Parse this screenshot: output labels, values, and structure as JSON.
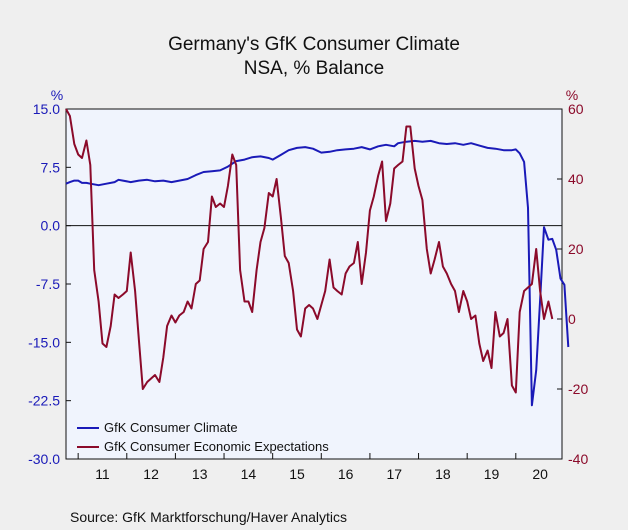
{
  "title": "Germany's GfK Consumer Climate",
  "subtitle": "NSA, % Balance",
  "source": "Source:  GfK Marktforschung/Haver Analytics",
  "colors": {
    "left": "#1a1ab8",
    "right": "#8b0a2a",
    "plot_bg": "#f0f4fd",
    "page_bg": "#efefef"
  },
  "chart_data": {
    "type": "line",
    "left_axis": {
      "unit": "%",
      "min": -30,
      "max": 15,
      "ticks": [
        "15.0",
        "7.5",
        "0.0",
        "-7.5",
        "-15.0",
        "-22.5",
        "-30.0"
      ]
    },
    "right_axis": {
      "unit": "%",
      "min": -40,
      "max": 60,
      "ticks": [
        "60",
        "40",
        "20",
        "0",
        "-20",
        "-40"
      ]
    },
    "x_axis": {
      "labels": [
        "11",
        "12",
        "13",
        "14",
        "15",
        "16",
        "17",
        "18",
        "19",
        "20"
      ],
      "start": 2010.75,
      "end": 2020.95
    },
    "reference_line": 0,
    "legend": "bottom-left",
    "series": [
      {
        "name": "GfK Consumer Climate",
        "axis": "left",
        "color": "#1a1ab8",
        "points": [
          [
            2010.75,
            5.4
          ],
          [
            2010.83,
            5.6
          ],
          [
            2010.92,
            5.8
          ],
          [
            2011.0,
            5.8
          ],
          [
            2011.08,
            5.5
          ],
          [
            2011.17,
            5.5
          ],
          [
            2011.25,
            5.4
          ],
          [
            2011.42,
            5.2
          ],
          [
            2011.58,
            5.4
          ],
          [
            2011.75,
            5.6
          ],
          [
            2011.83,
            5.9
          ],
          [
            2011.92,
            5.8
          ],
          [
            2012.08,
            5.6
          ],
          [
            2012.25,
            5.8
          ],
          [
            2012.42,
            5.9
          ],
          [
            2012.58,
            5.7
          ],
          [
            2012.75,
            5.8
          ],
          [
            2012.92,
            5.6
          ],
          [
            2013.08,
            5.8
          ],
          [
            2013.25,
            6.0
          ],
          [
            2013.42,
            6.5
          ],
          [
            2013.58,
            6.9
          ],
          [
            2013.75,
            7.0
          ],
          [
            2013.92,
            7.1
          ],
          [
            2014.08,
            7.6
          ],
          [
            2014.25,
            8.3
          ],
          [
            2014.42,
            8.5
          ],
          [
            2014.58,
            8.8
          ],
          [
            2014.75,
            8.9
          ],
          [
            2014.92,
            8.7
          ],
          [
            2015.0,
            8.5
          ],
          [
            2015.17,
            9.1
          ],
          [
            2015.33,
            9.7
          ],
          [
            2015.5,
            10.0
          ],
          [
            2015.67,
            10.1
          ],
          [
            2015.83,
            9.9
          ],
          [
            2016.0,
            9.4
          ],
          [
            2016.17,
            9.5
          ],
          [
            2016.33,
            9.7
          ],
          [
            2016.5,
            9.8
          ],
          [
            2016.67,
            9.9
          ],
          [
            2016.83,
            10.1
          ],
          [
            2017.0,
            9.8
          ],
          [
            2017.17,
            10.2
          ],
          [
            2017.33,
            10.4
          ],
          [
            2017.5,
            10.2
          ],
          [
            2017.58,
            10.6
          ],
          [
            2017.75,
            10.8
          ],
          [
            2017.92,
            10.9
          ],
          [
            2018.08,
            10.8
          ],
          [
            2018.25,
            10.9
          ],
          [
            2018.42,
            10.6
          ],
          [
            2018.58,
            10.5
          ],
          [
            2018.75,
            10.6
          ],
          [
            2018.92,
            10.4
          ],
          [
            2019.08,
            10.6
          ],
          [
            2019.25,
            10.3
          ],
          [
            2019.42,
            10.0
          ],
          [
            2019.58,
            9.9
          ],
          [
            2019.75,
            9.7
          ],
          [
            2019.92,
            9.7
          ],
          [
            2020.0,
            9.8
          ],
          [
            2020.08,
            9.3
          ],
          [
            2020.17,
            8.2
          ],
          [
            2020.25,
            2.3
          ],
          [
            2020.33,
            -23.1
          ],
          [
            2020.42,
            -18.6
          ],
          [
            2020.5,
            -9.6
          ],
          [
            2020.58,
            -0.2
          ],
          [
            2020.67,
            -1.8
          ],
          [
            2020.75,
            -1.7
          ],
          [
            2020.83,
            -3.1
          ],
          [
            2020.92,
            -6.8
          ],
          [
            2021.0,
            -7.6
          ],
          [
            2021.08,
            -15.6
          ]
        ]
      },
      {
        "name": "GfK Consumer Economic Expectations",
        "axis": "right",
        "color": "#8b0a2a",
        "points": [
          [
            2010.75,
            60
          ],
          [
            2010.83,
            58
          ],
          [
            2010.92,
            50
          ],
          [
            2011.0,
            47
          ],
          [
            2011.08,
            46
          ],
          [
            2011.17,
            51
          ],
          [
            2011.25,
            44
          ],
          [
            2011.33,
            14
          ],
          [
            2011.42,
            5
          ],
          [
            2011.5,
            -7
          ],
          [
            2011.58,
            -8
          ],
          [
            2011.67,
            -2
          ],
          [
            2011.75,
            7
          ],
          [
            2011.83,
            6
          ],
          [
            2011.92,
            7
          ],
          [
            2012.0,
            8
          ],
          [
            2012.08,
            19
          ],
          [
            2012.17,
            8
          ],
          [
            2012.25,
            -6
          ],
          [
            2012.33,
            -20
          ],
          [
            2012.42,
            -18
          ],
          [
            2012.5,
            -17
          ],
          [
            2012.58,
            -16
          ],
          [
            2012.67,
            -18
          ],
          [
            2012.75,
            -11
          ],
          [
            2012.83,
            -2
          ],
          [
            2012.92,
            1
          ],
          [
            2013.0,
            -1
          ],
          [
            2013.08,
            1
          ],
          [
            2013.17,
            2
          ],
          [
            2013.25,
            5
          ],
          [
            2013.33,
            3
          ],
          [
            2013.42,
            10
          ],
          [
            2013.5,
            11
          ],
          [
            2013.58,
            20
          ],
          [
            2013.67,
            22
          ],
          [
            2013.75,
            35
          ],
          [
            2013.83,
            32
          ],
          [
            2013.92,
            33
          ],
          [
            2014.0,
            32
          ],
          [
            2014.08,
            38
          ],
          [
            2014.17,
            47
          ],
          [
            2014.25,
            44
          ],
          [
            2014.33,
            14
          ],
          [
            2014.42,
            5
          ],
          [
            2014.5,
            5
          ],
          [
            2014.58,
            2
          ],
          [
            2014.67,
            14
          ],
          [
            2014.75,
            22
          ],
          [
            2014.83,
            26
          ],
          [
            2014.92,
            36
          ],
          [
            2015.0,
            35
          ],
          [
            2015.08,
            40
          ],
          [
            2015.17,
            29
          ],
          [
            2015.25,
            18
          ],
          [
            2015.33,
            16
          ],
          [
            2015.42,
            8
          ],
          [
            2015.5,
            -3
          ],
          [
            2015.58,
            -5
          ],
          [
            2015.67,
            3
          ],
          [
            2015.75,
            4
          ],
          [
            2015.83,
            3
          ],
          [
            2015.92,
            0
          ],
          [
            2016.0,
            4
          ],
          [
            2016.08,
            8
          ],
          [
            2016.17,
            17
          ],
          [
            2016.25,
            9
          ],
          [
            2016.33,
            8
          ],
          [
            2016.42,
            7
          ],
          [
            2016.5,
            13
          ],
          [
            2016.58,
            15
          ],
          [
            2016.67,
            16
          ],
          [
            2016.75,
            22
          ],
          [
            2016.83,
            10
          ],
          [
            2016.92,
            19
          ],
          [
            2017.0,
            31
          ],
          [
            2017.08,
            35
          ],
          [
            2017.17,
            41
          ],
          [
            2017.25,
            45
          ],
          [
            2017.33,
            28
          ],
          [
            2017.42,
            33
          ],
          [
            2017.5,
            43
          ],
          [
            2017.58,
            44
          ],
          [
            2017.67,
            45
          ],
          [
            2017.75,
            55
          ],
          [
            2017.83,
            55
          ],
          [
            2017.92,
            43
          ],
          [
            2018.0,
            38
          ],
          [
            2018.08,
            34
          ],
          [
            2018.17,
            20
          ],
          [
            2018.25,
            13
          ],
          [
            2018.33,
            17
          ],
          [
            2018.42,
            22
          ],
          [
            2018.5,
            15
          ],
          [
            2018.58,
            13
          ],
          [
            2018.67,
            10
          ],
          [
            2018.75,
            8
          ],
          [
            2018.83,
            2
          ],
          [
            2018.92,
            8
          ],
          [
            2019.0,
            5
          ],
          [
            2019.08,
            0
          ],
          [
            2019.17,
            1
          ],
          [
            2019.25,
            -7
          ],
          [
            2019.33,
            -12
          ],
          [
            2019.42,
            -9
          ],
          [
            2019.5,
            -14
          ],
          [
            2019.58,
            2
          ],
          [
            2019.67,
            -5
          ],
          [
            2019.75,
            -4
          ],
          [
            2019.83,
            0
          ],
          [
            2019.92,
            -19
          ],
          [
            2020.0,
            -21
          ],
          [
            2020.08,
            2
          ],
          [
            2020.17,
            8
          ],
          [
            2020.25,
            9
          ],
          [
            2020.33,
            10
          ],
          [
            2020.42,
            20
          ],
          [
            2020.5,
            8
          ],
          [
            2020.58,
            0
          ],
          [
            2020.67,
            5
          ],
          [
            2020.75,
            0
          ]
        ]
      }
    ]
  }
}
